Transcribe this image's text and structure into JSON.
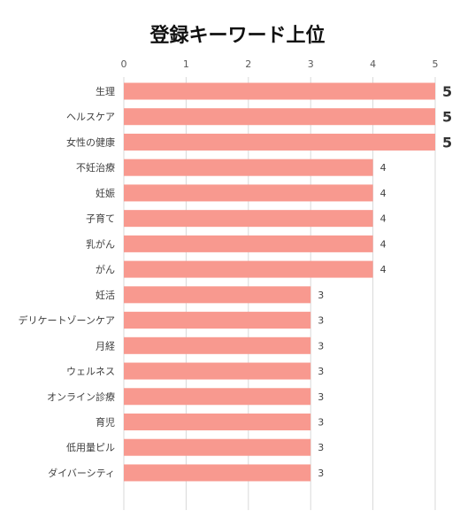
{
  "chart_data": {
    "type": "bar",
    "orientation": "horizontal",
    "title": "登録キーワード上位",
    "categories": [
      "生理",
      "ヘルスケア",
      "女性の健康",
      "不妊治療",
      "妊娠",
      "子育て",
      "乳がん",
      "がん",
      "妊活",
      "デリケートゾーンケア",
      "月経",
      "ウェルネス",
      "オンライン診療",
      "育児",
      "低用量ピル",
      "ダイバーシティ"
    ],
    "values": [
      5,
      5,
      5,
      4,
      4,
      4,
      4,
      4,
      3,
      3,
      3,
      3,
      3,
      3,
      3,
      3
    ],
    "xlim": [
      0,
      5
    ],
    "x_ticks": [
      0,
      1,
      2,
      3,
      4,
      5
    ],
    "xlabel": "",
    "ylabel": "",
    "grid": "vertical",
    "legend": "none",
    "bar_color": "#F8998F",
    "grid_color": "#D9D9D9",
    "axis_tick_color": "#595959",
    "label_color": "#404040"
  }
}
